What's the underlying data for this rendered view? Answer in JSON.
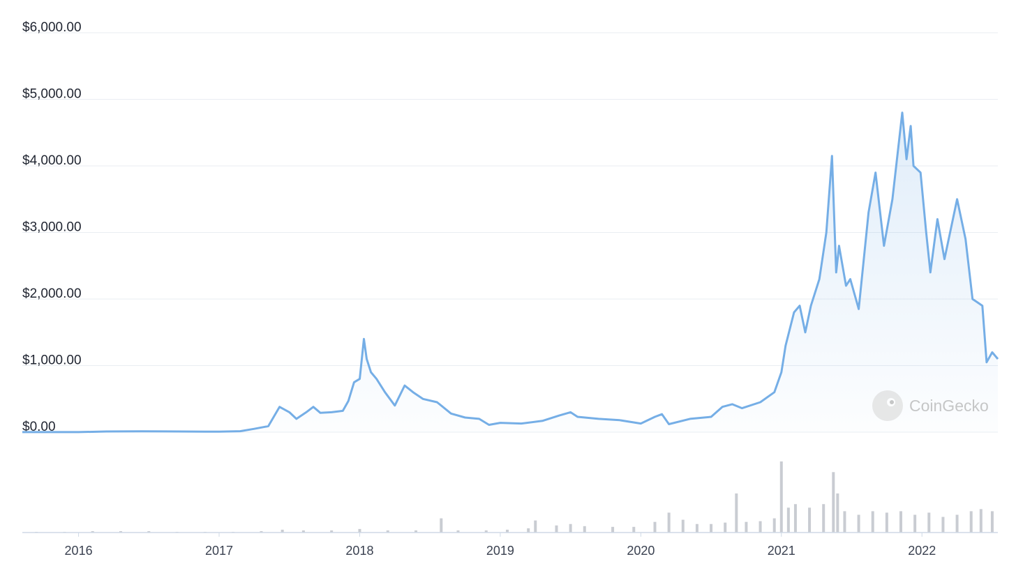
{
  "chart_data": {
    "type": "line",
    "watermark": "CoinGecko",
    "xlim": [
      2015.6,
      2022.54
    ],
    "xticks": [
      2016,
      2017,
      2018,
      2019,
      2020,
      2021,
      2022
    ],
    "ylim": [
      0,
      6000
    ],
    "yticks": [
      {
        "value": 0,
        "label": "$0.00"
      },
      {
        "value": 1000,
        "label": "$1,000.00"
      },
      {
        "value": 2000,
        "label": "$2,000.00"
      },
      {
        "value": 3000,
        "label": "$3,000.00"
      },
      {
        "value": 4000,
        "label": "$4,000.00"
      },
      {
        "value": 5000,
        "label": "$5,000.00"
      },
      {
        "value": 6000,
        "label": "$6,000.00"
      }
    ],
    "grid": true,
    "x": [
      2015.6,
      2016.0,
      2016.2,
      2016.45,
      2016.6,
      2016.9,
      2017.0,
      2017.15,
      2017.25,
      2017.35,
      2017.43,
      2017.5,
      2017.55,
      2017.62,
      2017.67,
      2017.72,
      2017.8,
      2017.88,
      2017.92,
      2017.96,
      2018.0,
      2018.03,
      2018.05,
      2018.08,
      2018.12,
      2018.18,
      2018.25,
      2018.32,
      2018.38,
      2018.45,
      2018.55,
      2018.65,
      2018.75,
      2018.85,
      2018.92,
      2019.0,
      2019.15,
      2019.3,
      2019.42,
      2019.5,
      2019.55,
      2019.7,
      2019.85,
      2020.0,
      2020.1,
      2020.15,
      2020.2,
      2020.35,
      2020.5,
      2020.58,
      2020.65,
      2020.72,
      2020.85,
      2020.95,
      2021.0,
      2021.03,
      2021.09,
      2021.13,
      2021.17,
      2021.21,
      2021.27,
      2021.32,
      2021.36,
      2021.39,
      2021.41,
      2021.46,
      2021.49,
      2021.55,
      2021.62,
      2021.67,
      2021.73,
      2021.79,
      2021.86,
      2021.89,
      2021.92,
      2021.94,
      2021.99,
      2022.03,
      2022.06,
      2022.11,
      2022.16,
      2022.25,
      2022.31,
      2022.36,
      2022.43,
      2022.46,
      2022.5,
      2022.54
    ],
    "series": [
      {
        "color": "#75aee6",
        "values": [
          1,
          1,
          10,
          14,
          11,
          8,
          8,
          15,
          50,
          90,
          380,
          300,
          200,
          300,
          380,
          290,
          300,
          320,
          470,
          750,
          800,
          1400,
          1100,
          900,
          800,
          600,
          400,
          700,
          600,
          500,
          450,
          280,
          220,
          200,
          110,
          140,
          130,
          170,
          250,
          300,
          230,
          200,
          180,
          130,
          230,
          270,
          120,
          200,
          230,
          380,
          420,
          360,
          450,
          600,
          900,
          1300,
          1800,
          1900,
          1500,
          1900,
          2300,
          3000,
          4150,
          2400,
          2800,
          2200,
          2300,
          1850,
          3300,
          3900,
          2800,
          3500,
          4800,
          4100,
          4600,
          4000,
          3900,
          3000,
          2400,
          3200,
          2600,
          3500,
          2900,
          2000,
          1900,
          1050,
          1200,
          1100
        ]
      }
    ],
    "volume": {
      "color": "#c9ccd2",
      "ylim": [
        0,
        100
      ],
      "x": [
        2015.7,
        2015.9,
        2016.1,
        2016.3,
        2016.5,
        2016.7,
        2016.9,
        2017.1,
        2017.3,
        2017.45,
        2017.6,
        2017.8,
        2018.0,
        2018.2,
        2018.4,
        2018.58,
        2018.7,
        2018.9,
        2019.05,
        2019.2,
        2019.25,
        2019.4,
        2019.5,
        2019.6,
        2019.8,
        2019.95,
        2020.1,
        2020.2,
        2020.3,
        2020.4,
        2020.5,
        2020.6,
        2020.68,
        2020.75,
        2020.85,
        2020.95,
        2021.0,
        2021.05,
        2021.1,
        2021.2,
        2021.3,
        2021.37,
        2021.4,
        2021.45,
        2021.55,
        2021.65,
        2021.75,
        2021.85,
        2021.95,
        2022.05,
        2022.15,
        2022.25,
        2022.35,
        2022.42,
        2022.5
      ],
      "values": [
        1,
        1,
        2,
        2,
        2,
        1,
        1,
        1,
        2,
        4,
        3,
        3,
        5,
        3,
        3,
        20,
        3,
        3,
        4,
        6,
        17,
        10,
        12,
        9,
        8,
        8,
        15,
        28,
        18,
        12,
        12,
        14,
        55,
        15,
        16,
        20,
        100,
        35,
        40,
        35,
        40,
        85,
        55,
        30,
        25,
        30,
        28,
        30,
        25,
        28,
        22,
        25,
        30,
        33,
        30
      ]
    }
  }
}
